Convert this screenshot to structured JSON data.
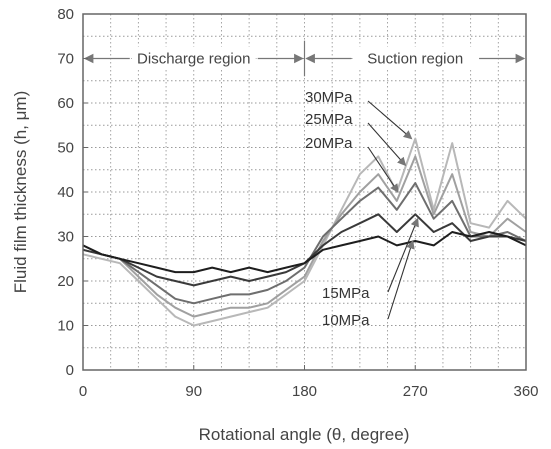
{
  "chart_data": {
    "type": "line",
    "xlabel": "Rotational angle (θ, degree)",
    "ylabel": "Fluid film thickness (h, μm)",
    "xlim": [
      0,
      360
    ],
    "ylim": [
      0,
      80
    ],
    "xticks": [
      0,
      90,
      180,
      270,
      360
    ],
    "yticks": [
      0,
      10,
      20,
      30,
      40,
      50,
      60,
      70,
      80
    ],
    "grid": true,
    "legend": "inline labels with leader arrows",
    "regions": [
      {
        "label": "Discharge region",
        "x_start": 0,
        "x_end": 180,
        "y": 70
      },
      {
        "label": "Suction region",
        "x_start": 180,
        "x_end": 360,
        "y": 70
      }
    ],
    "x": [
      0,
      15,
      30,
      45,
      60,
      75,
      90,
      105,
      120,
      135,
      150,
      165,
      180,
      195,
      210,
      225,
      240,
      255,
      270,
      285,
      300,
      315,
      330,
      345,
      360
    ],
    "series": [
      {
        "name": "30MPa",
        "color": "#b8b8b8",
        "values": [
          26,
          25,
          24,
          20,
          16,
          12,
          10,
          11,
          12,
          13,
          14,
          17,
          20,
          28,
          36,
          44,
          48,
          40,
          52,
          36,
          51,
          33,
          32,
          38,
          34
        ]
      },
      {
        "name": "25MPa",
        "color": "#a0a0a0",
        "values": [
          27,
          26,
          25,
          21,
          17,
          14,
          12,
          13,
          14,
          14,
          15,
          18,
          21,
          29,
          35,
          40,
          44,
          38,
          48,
          35,
          44,
          31,
          30,
          34,
          31
        ]
      },
      {
        "name": "20MPa",
        "color": "#6e6e6e",
        "values": [
          28,
          26,
          25,
          22,
          19,
          16,
          15,
          16,
          17,
          17,
          18,
          20,
          23,
          30,
          34,
          38,
          41,
          36,
          42,
          34,
          38,
          30,
          30,
          31,
          29
        ]
      },
      {
        "name": "15MPa",
        "color": "#3a3a3a",
        "values": [
          27,
          26,
          25,
          23,
          21,
          20,
          19,
          20,
          21,
          20,
          21,
          22,
          24,
          28,
          31,
          33,
          35,
          31,
          35,
          31,
          33,
          29,
          30,
          30,
          29
        ]
      },
      {
        "name": "10MPa",
        "color": "#1e1e1e",
        "values": [
          28,
          26,
          25,
          24,
          23,
          22,
          22,
          23,
          22,
          23,
          22,
          23,
          24,
          27,
          28,
          29,
          30,
          28,
          29,
          28,
          31,
          30,
          31,
          30,
          28
        ]
      }
    ],
    "annotations": [
      {
        "text": "30MPa",
        "target_series": "30MPa"
      },
      {
        "text": "25MPa",
        "target_series": "25MPa"
      },
      {
        "text": "20MPa",
        "target_series": "20MPa"
      },
      {
        "text": "15MPa",
        "target_series": "15MPa"
      },
      {
        "text": "10MPa",
        "target_series": "10MPa"
      }
    ]
  }
}
